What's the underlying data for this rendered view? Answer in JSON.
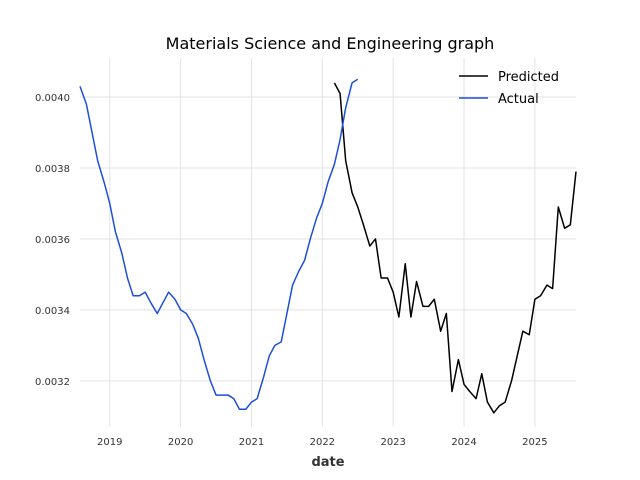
{
  "chart_data": {
    "type": "line",
    "title": "Materials Science and Engineering graph",
    "xlabel": "date",
    "ylabel": "",
    "x_range": [
      2018.58,
      2025.58
    ],
    "ylim": [
      0.00307,
      0.00411
    ],
    "x_ticks": [
      2019,
      2020,
      2021,
      2022,
      2023,
      2024,
      2025
    ],
    "x_tick_labels": [
      "2019",
      "2020",
      "2021",
      "2022",
      "2023",
      "2024",
      "2025"
    ],
    "y_ticks": [
      0.0032,
      0.0034,
      0.0036,
      0.0038,
      0.004
    ],
    "y_tick_labels": [
      "0.0032",
      "0.0034",
      "0.0036",
      "0.0038",
      "0.0040"
    ],
    "grid": true,
    "legend_position": "top-right",
    "series": [
      {
        "name": "Predicted",
        "color": "#000000",
        "x": [
          2022.17,
          2022.25,
          2022.33,
          2022.42,
          2022.5,
          2022.58,
          2022.67,
          2022.75,
          2022.83,
          2022.92,
          2023.0,
          2023.08,
          2023.17,
          2023.25,
          2023.33,
          2023.42,
          2023.5,
          2023.58,
          2023.67,
          2023.75,
          2023.83,
          2023.92,
          2024.0,
          2024.08,
          2024.17,
          2024.25,
          2024.33,
          2024.42,
          2024.5,
          2024.58,
          2024.67,
          2024.75,
          2024.83,
          2024.92,
          2025.0,
          2025.08,
          2025.17,
          2025.25,
          2025.33,
          2025.42,
          2025.5,
          2025.58
        ],
        "values": [
          0.00404,
          0.00401,
          0.00382,
          0.00373,
          0.00369,
          0.00364,
          0.00358,
          0.0036,
          0.00349,
          0.00349,
          0.00345,
          0.00338,
          0.00353,
          0.00338,
          0.00348,
          0.00341,
          0.00341,
          0.00343,
          0.00334,
          0.00339,
          0.00317,
          0.00326,
          0.00319,
          0.00317,
          0.00315,
          0.00322,
          0.00314,
          0.00311,
          0.00313,
          0.00314,
          0.0032,
          0.00327,
          0.00334,
          0.00333,
          0.00343,
          0.00344,
          0.00347,
          0.00346,
          0.00369,
          0.00363,
          0.00364,
          0.00379
        ]
      },
      {
        "name": "Actual",
        "color": "#1f4fd6",
        "x": [
          2018.58,
          2018.67,
          2018.75,
          2018.83,
          2018.92,
          2019.0,
          2019.08,
          2019.17,
          2019.25,
          2019.33,
          2019.42,
          2019.5,
          2019.58,
          2019.67,
          2019.75,
          2019.83,
          2019.92,
          2020.0,
          2020.08,
          2020.17,
          2020.25,
          2020.33,
          2020.42,
          2020.5,
          2020.58,
          2020.67,
          2020.75,
          2020.83,
          2020.92,
          2021.0,
          2021.08,
          2021.17,
          2021.25,
          2021.33,
          2021.42,
          2021.5,
          2021.58,
          2021.67,
          2021.75,
          2021.83,
          2021.92,
          2022.0,
          2022.08,
          2022.17,
          2022.25,
          2022.33,
          2022.42,
          2022.5
        ],
        "values": [
          0.00403,
          0.00398,
          0.0039,
          0.00382,
          0.00376,
          0.0037,
          0.00362,
          0.00356,
          0.00349,
          0.00344,
          0.00344,
          0.00345,
          0.00342,
          0.00339,
          0.00342,
          0.00345,
          0.00343,
          0.0034,
          0.00339,
          0.00336,
          0.00332,
          0.00326,
          0.0032,
          0.00316,
          0.00316,
          0.00316,
          0.00315,
          0.00312,
          0.00312,
          0.00314,
          0.00315,
          0.00321,
          0.00327,
          0.0033,
          0.00331,
          0.00339,
          0.00347,
          0.00351,
          0.00354,
          0.0036,
          0.00366,
          0.0037,
          0.00376,
          0.00381,
          0.00388,
          0.00397,
          0.00404,
          0.00405
        ]
      }
    ]
  }
}
